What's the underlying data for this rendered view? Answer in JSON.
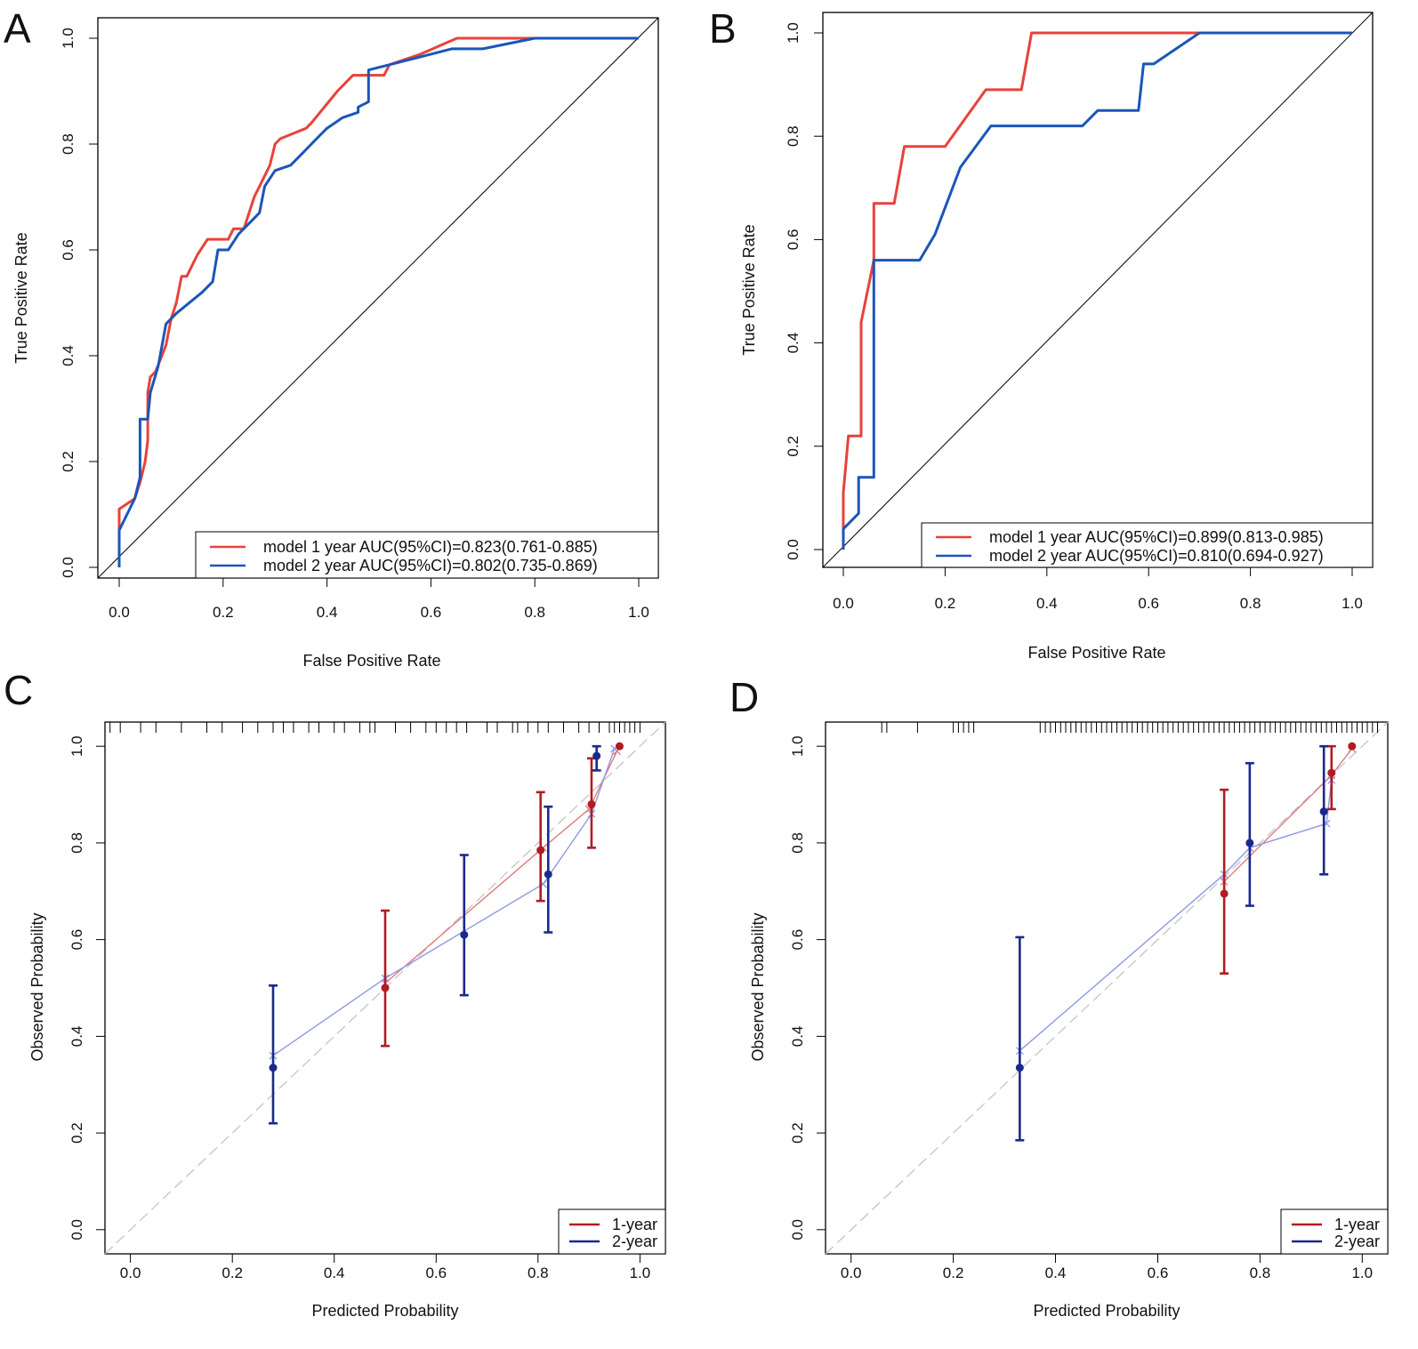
{
  "figure": {
    "panels": [
      {
        "letter": "A",
        "kind": "roc"
      },
      {
        "letter": "B",
        "kind": "roc"
      },
      {
        "letter": "C",
        "kind": "calibration"
      },
      {
        "letter": "D",
        "kind": "calibration"
      }
    ]
  },
  "chart_data": [
    {
      "panel": "A",
      "type": "line",
      "title": "",
      "xlabel": "False Positive Rate",
      "ylabel": "True Positive Rate",
      "xlim": [
        0,
        1
      ],
      "ylim": [
        0,
        1
      ],
      "xticks": [
        "0.0",
        "0.2",
        "0.4",
        "0.6",
        "0.8",
        "1.0"
      ],
      "yticks": [
        "0.0",
        "0.2",
        "0.4",
        "0.6",
        "0.8",
        "1.0"
      ],
      "legend": {
        "position": "bottom-right"
      },
      "colors": {
        "model1": "#e8423a",
        "model2": "#1a56b8",
        "diagonal": "#000000"
      },
      "series": [
        {
          "name": "model 1 year AUC(95%CI)=0.823(0.761-0.885)",
          "color": "#e8423a",
          "points": [
            [
              0,
              0
            ],
            [
              0,
              0.11
            ],
            [
              0.03,
              0.13
            ],
            [
              0.04,
              0.16
            ],
            [
              0.05,
              0.2
            ],
            [
              0.055,
              0.24
            ],
            [
              0.055,
              0.33
            ],
            [
              0.06,
              0.36
            ],
            [
              0.07,
              0.37
            ],
            [
              0.09,
              0.42
            ],
            [
              0.1,
              0.47
            ],
            [
              0.11,
              0.5
            ],
            [
              0.12,
              0.55
            ],
            [
              0.13,
              0.55
            ],
            [
              0.15,
              0.59
            ],
            [
              0.17,
              0.62
            ],
            [
              0.2,
              0.62
            ],
            [
              0.21,
              0.62
            ],
            [
              0.22,
              0.64
            ],
            [
              0.24,
              0.64
            ],
            [
              0.25,
              0.67
            ],
            [
              0.26,
              0.7
            ],
            [
              0.27,
              0.72
            ],
            [
              0.29,
              0.76
            ],
            [
              0.3,
              0.8
            ],
            [
              0.31,
              0.81
            ],
            [
              0.36,
              0.83
            ],
            [
              0.37,
              0.84
            ],
            [
              0.42,
              0.9
            ],
            [
              0.45,
              0.93
            ],
            [
              0.47,
              0.93
            ],
            [
              0.49,
              0.93
            ],
            [
              0.51,
              0.93
            ],
            [
              0.52,
              0.95
            ],
            [
              0.58,
              0.97
            ],
            [
              0.65,
              1.0
            ],
            [
              0.82,
              1.0
            ],
            [
              1.0,
              1.0
            ]
          ]
        },
        {
          "name": "model 2 year AUC(95%CI)=0.802(0.735-0.869)",
          "color": "#1a56b8",
          "points": [
            [
              0,
              0
            ],
            [
              0,
              0.07
            ],
            [
              0.03,
              0.13
            ],
            [
              0.04,
              0.17
            ],
            [
              0.04,
              0.28
            ],
            [
              0.055,
              0.28
            ],
            [
              0.06,
              0.33
            ],
            [
              0.075,
              0.38
            ],
            [
              0.09,
              0.46
            ],
            [
              0.11,
              0.48
            ],
            [
              0.16,
              0.52
            ],
            [
              0.18,
              0.54
            ],
            [
              0.19,
              0.6
            ],
            [
              0.21,
              0.6
            ],
            [
              0.23,
              0.63
            ],
            [
              0.27,
              0.67
            ],
            [
              0.28,
              0.72
            ],
            [
              0.3,
              0.75
            ],
            [
              0.33,
              0.76
            ],
            [
              0.35,
              0.78
            ],
            [
              0.38,
              0.81
            ],
            [
              0.4,
              0.83
            ],
            [
              0.43,
              0.85
            ],
            [
              0.46,
              0.86
            ],
            [
              0.46,
              0.87
            ],
            [
              0.48,
              0.88
            ],
            [
              0.48,
              0.94
            ],
            [
              0.52,
              0.95
            ],
            [
              0.6,
              0.97
            ],
            [
              0.64,
              0.98
            ],
            [
              0.7,
              0.98
            ],
            [
              0.8,
              1.0
            ],
            [
              1.0,
              1.0
            ]
          ]
        }
      ]
    },
    {
      "panel": "B",
      "type": "line",
      "title": "",
      "xlabel": "False Positive Rate",
      "ylabel": "True Positive Rate",
      "xlim": [
        0,
        1
      ],
      "ylim": [
        0,
        1
      ],
      "xticks": [
        "0.0",
        "0.2",
        "0.4",
        "0.6",
        "0.8",
        "1.0"
      ],
      "yticks": [
        "0.0",
        "0.2",
        "0.4",
        "0.6",
        "0.8",
        "1.0"
      ],
      "legend": {
        "position": "bottom-right"
      },
      "colors": {
        "model1": "#e8423a",
        "model2": "#1a56b8",
        "diagonal": "#000000"
      },
      "series": [
        {
          "name": "model 1 year AUC(95%CI)=0.899(0.813-0.985)",
          "color": "#e8423a",
          "points": [
            [
              0,
              0
            ],
            [
              0,
              0.11
            ],
            [
              0.01,
              0.22
            ],
            [
              0.035,
              0.22
            ],
            [
              0.035,
              0.44
            ],
            [
              0.06,
              0.56
            ],
            [
              0.06,
              0.67
            ],
            [
              0.09,
              0.67
            ],
            [
              0.1,
              0.67
            ],
            [
              0.12,
              0.78
            ],
            [
              0.2,
              0.78
            ],
            [
              0.28,
              0.89
            ],
            [
              0.35,
              0.89
            ],
            [
              0.37,
              1.0
            ],
            [
              1.0,
              1.0
            ]
          ]
        },
        {
          "name": "model 2 year AUC(95%CI)=0.810(0.694-0.927)",
          "color": "#1a56b8",
          "points": [
            [
              0,
              0
            ],
            [
              0,
              0.04
            ],
            [
              0.03,
              0.07
            ],
            [
              0.03,
              0.14
            ],
            [
              0.06,
              0.14
            ],
            [
              0.06,
              0.56
            ],
            [
              0.15,
              0.56
            ],
            [
              0.18,
              0.61
            ],
            [
              0.23,
              0.74
            ],
            [
              0.29,
              0.82
            ],
            [
              0.47,
              0.82
            ],
            [
              0.5,
              0.85
            ],
            [
              0.58,
              0.85
            ],
            [
              0.59,
              0.94
            ],
            [
              0.61,
              0.94
            ],
            [
              0.7,
              1.0
            ],
            [
              1.0,
              1.0
            ]
          ]
        }
      ]
    },
    {
      "panel": "C",
      "type": "scatter",
      "title": "",
      "xlabel": "Predicted Probability",
      "ylabel": "Observed Probability",
      "xlim": [
        -0.05,
        1.05
      ],
      "ylim": [
        -0.05,
        1.05
      ],
      "xticks": [
        "0.0",
        "0.2",
        "0.4",
        "0.6",
        "0.8",
        "1.0"
      ],
      "yticks": [
        "0.0",
        "0.2",
        "0.4",
        "0.6",
        "0.8",
        "1.0"
      ],
      "legend": {
        "position": "bottom-right"
      },
      "series": [
        {
          "name": "1-year",
          "color": "#b01c22",
          "points": [
            {
              "x": 0.5,
              "y": 0.5,
              "lo": 0.38,
              "hi": 0.66
            },
            {
              "x": 0.805,
              "y": 0.785,
              "lo": 0.68,
              "hi": 0.905
            },
            {
              "x": 0.905,
              "y": 0.88,
              "lo": 0.79,
              "hi": 0.975
            },
            {
              "x": 0.96,
              "y": 1.0,
              "lo": 1.0,
              "hi": 1.0
            }
          ],
          "corrected": [
            [
              0.5,
              0.51
            ],
            [
              0.81,
              0.79
            ],
            [
              0.9,
              0.87
            ],
            [
              0.955,
              0.99
            ]
          ]
        },
        {
          "name": "2-year",
          "color": "#1a2a8c",
          "points": [
            {
              "x": 0.28,
              "y": 0.335,
              "lo": 0.22,
              "hi": 0.505
            },
            {
              "x": 0.655,
              "y": 0.61,
              "lo": 0.485,
              "hi": 0.775
            },
            {
              "x": 0.82,
              "y": 0.735,
              "lo": 0.615,
              "hi": 0.875
            },
            {
              "x": 0.915,
              "y": 0.98,
              "lo": 0.95,
              "hi": 1.0
            }
          ],
          "corrected": [
            [
              0.28,
              0.36
            ],
            [
              0.5,
              0.52
            ],
            [
              0.81,
              0.715
            ],
            [
              0.905,
              0.86
            ],
            [
              0.95,
              0.995
            ]
          ]
        }
      ],
      "rug": [
        -0.04,
        -0.02,
        0.02,
        0.05,
        0.1,
        0.15,
        0.18,
        0.22,
        0.25,
        0.28,
        0.3,
        0.32,
        0.35,
        0.37,
        0.4,
        0.42,
        0.45,
        0.47,
        0.48,
        0.52,
        0.55,
        0.58,
        0.6,
        0.62,
        0.64,
        0.66,
        0.7,
        0.72,
        0.75,
        0.76,
        0.78,
        0.8,
        0.82,
        0.85,
        0.88,
        0.9,
        0.92,
        0.94,
        0.95,
        0.96,
        0.97,
        0.98,
        0.99,
        1.0
      ]
    },
    {
      "panel": "D",
      "type": "scatter",
      "title": "",
      "xlabel": "Predicted Probability",
      "ylabel": "Observed Probability",
      "xlim": [
        -0.05,
        1.05
      ],
      "ylim": [
        -0.05,
        1.05
      ],
      "xticks": [
        "0.0",
        "0.2",
        "0.4",
        "0.6",
        "0.8",
        "1.0"
      ],
      "yticks": [
        "0.0",
        "0.2",
        "0.4",
        "0.6",
        "0.8",
        "1.0"
      ],
      "legend": {
        "position": "bottom-right"
      },
      "series": [
        {
          "name": "1-year",
          "color": "#b01c22",
          "points": [
            {
              "x": 0.73,
              "y": 0.695,
              "lo": 0.53,
              "hi": 0.91
            },
            {
              "x": 0.94,
              "y": 0.945,
              "lo": 0.87,
              "hi": 1.0
            },
            {
              "x": 0.98,
              "y": 1.0,
              "lo": 1.0,
              "hi": 1.0
            }
          ],
          "corrected": [
            [
              0.73,
              0.72
            ],
            [
              0.94,
              0.94
            ],
            [
              0.98,
              0.995
            ]
          ]
        },
        {
          "name": "2-year",
          "color": "#1a2a8c",
          "points": [
            {
              "x": 0.33,
              "y": 0.335,
              "lo": 0.185,
              "hi": 0.605
            },
            {
              "x": 0.78,
              "y": 0.8,
              "lo": 0.67,
              "hi": 0.965
            },
            {
              "x": 0.925,
              "y": 0.865,
              "lo": 0.735,
              "hi": 1.0
            }
          ],
          "corrected": [
            [
              0.33,
              0.37
            ],
            [
              0.73,
              0.735
            ],
            [
              0.78,
              0.79
            ],
            [
              0.93,
              0.84
            ],
            [
              0.94,
              0.93
            ]
          ]
        }
      ],
      "rug": [
        0.06,
        0.07,
        0.13,
        0.2,
        0.21,
        0.22,
        0.23,
        0.24,
        0.37,
        0.38,
        0.39,
        0.4,
        0.41,
        0.42,
        0.43,
        0.44,
        0.45,
        0.46,
        0.47,
        0.48,
        0.49,
        0.5,
        0.51,
        0.52,
        0.53,
        0.54,
        0.55,
        0.56,
        0.57,
        0.58,
        0.59,
        0.6,
        0.61,
        0.62,
        0.63,
        0.64,
        0.65,
        0.66,
        0.67,
        0.68,
        0.69,
        0.7,
        0.71,
        0.72,
        0.73,
        0.74,
        0.75,
        0.76,
        0.77,
        0.78,
        0.79,
        0.8,
        0.81,
        0.82,
        0.83,
        0.84,
        0.85,
        0.86,
        0.87,
        0.88,
        0.89,
        0.9,
        0.91,
        0.92,
        0.93,
        0.94,
        0.95,
        0.96,
        0.97,
        0.98,
        0.99,
        1.0,
        1.01,
        1.02,
        1.03
      ]
    }
  ]
}
